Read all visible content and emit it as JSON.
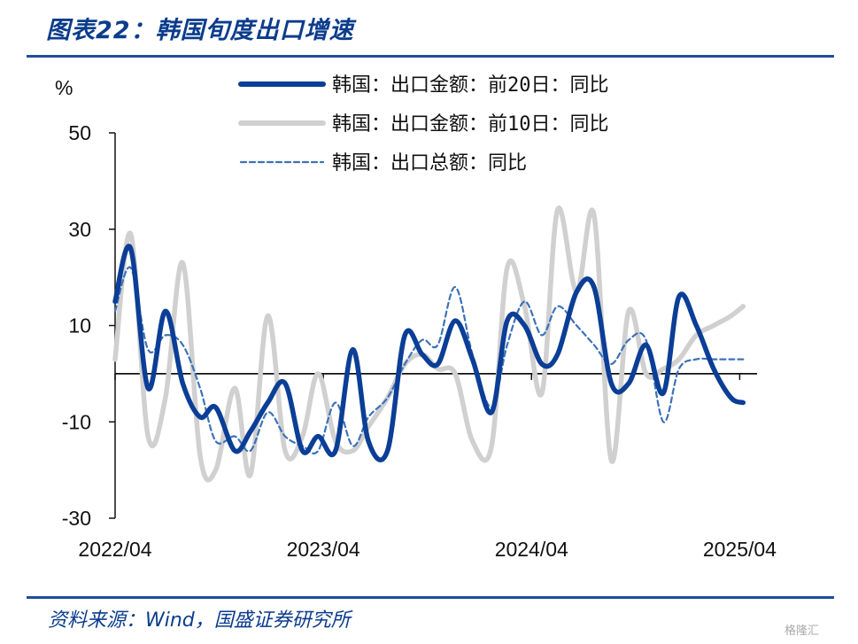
{
  "header": {
    "title": "图表22：韩国旬度出口增速"
  },
  "footer": {
    "source": "资料来源：Wind，国盛证券研究所",
    "watermark": "格隆汇"
  },
  "chart_data": {
    "type": "line",
    "ylabel": "%",
    "ylim": [
      -30,
      50
    ],
    "yticks": [
      50,
      30,
      10,
      -10,
      -30
    ],
    "xlim": [
      0,
      37
    ],
    "xticks": [
      {
        "x": 0,
        "label": "2022/04"
      },
      {
        "x": 12,
        "label": "2023/04"
      },
      {
        "x": 24,
        "label": "2024/04"
      },
      {
        "x": 36,
        "label": "2025/04"
      }
    ],
    "zero_line": 0,
    "series": [
      {
        "name": "韩国：出口金额：前20日：同比",
        "color": "#0b3e96",
        "style": "thick",
        "x": [
          0,
          0.9,
          1.9,
          2.9,
          3.9,
          4.9,
          5.8,
          6.9,
          7.8,
          8.8,
          9.8,
          10.8,
          11.7,
          12.7,
          13.7,
          14.6,
          15.7,
          16.7,
          17.7,
          18.6,
          19.6,
          20.6,
          21.7,
          22.6,
          23.6,
          24.6,
          25.5,
          26.6,
          27.6,
          28.6,
          29.6,
          30.6,
          31.6,
          32.5,
          33.5,
          34.5,
          35.5,
          36.2
        ],
        "values": [
          15,
          26,
          -3,
          13,
          -2,
          -9,
          -7,
          -16,
          -12,
          -6,
          -2,
          -16,
          -13,
          -16,
          5,
          -14,
          -16,
          8,
          4,
          2,
          11,
          3,
          -8,
          11,
          10,
          2,
          4,
          17,
          18,
          -2,
          -2,
          6,
          -4,
          16,
          10,
          1,
          -5,
          -6
        ]
      },
      {
        "name": "韩国：出口金额：前10日：同比",
        "color": "#d0d0d0",
        "style": "thick",
        "x": [
          0,
          0.9,
          1.9,
          2.9,
          3.9,
          4.9,
          5.8,
          6.9,
          7.8,
          8.8,
          9.8,
          10.8,
          11.7,
          12.7,
          13.7,
          14.6,
          15.7,
          16.7,
          17.7,
          18.6,
          19.6,
          20.6,
          21.7,
          22.6,
          23.6,
          24.6,
          25.5,
          26.6,
          27.6,
          28.6,
          29.6,
          30.6,
          31.6,
          32.5,
          33.5,
          34.5,
          35.5,
          36.2
        ],
        "values": [
          3,
          29,
          -13,
          -5,
          23,
          -17,
          -20,
          -3,
          -21,
          12,
          -16,
          -13,
          0,
          -14,
          -16,
          -11,
          -5,
          2,
          4,
          1,
          0,
          -14,
          -15,
          22,
          14,
          -4,
          34,
          17,
          33,
          -18,
          13,
          0,
          1,
          3,
          8,
          10,
          12,
          14
        ]
      },
      {
        "name": "韩国：出口总额：同比",
        "color": "#3c72b8",
        "style": "dashed",
        "x": [
          0,
          0.9,
          1.9,
          2.9,
          3.9,
          4.9,
          5.8,
          6.9,
          7.8,
          8.8,
          9.8,
          10.8,
          11.7,
          12.7,
          13.7,
          14.6,
          15.7,
          16.7,
          17.7,
          18.6,
          19.6,
          20.6,
          21.7,
          22.6,
          23.6,
          24.6,
          25.5,
          26.6,
          27.6,
          28.6,
          29.6,
          30.6,
          31.6,
          32.5,
          33.5,
          34.5,
          35.5,
          36.2
        ],
        "values": [
          13,
          22,
          5,
          8,
          6,
          -3,
          -14,
          -13,
          -16,
          -8,
          -13,
          -15,
          -16,
          -6,
          -15,
          -9,
          -5,
          2,
          7,
          6,
          18,
          4,
          -7,
          6,
          15,
          8,
          14,
          10,
          6,
          2,
          7,
          7,
          -10,
          1,
          3,
          3,
          3,
          3
        ]
      }
    ]
  }
}
